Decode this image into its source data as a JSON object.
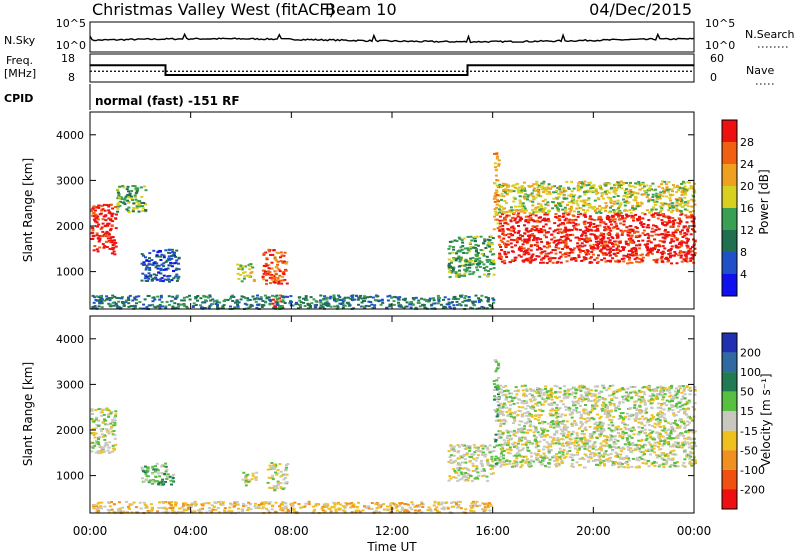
{
  "header": {
    "title": "Christmas Valley West (fitACF)",
    "beam": "Beam 10",
    "date": "04/Dec/2015"
  },
  "noise_panel": {
    "left_label": "N.Sky",
    "right_label": "N.Search",
    "left_ticks": [
      "10^5",
      "10^0"
    ],
    "right_ticks": [
      "10^5",
      "10^0"
    ]
  },
  "freq_panel": {
    "left_label_1": "Freq.",
    "left_label_2": "[MHz]",
    "right_label": "Nave",
    "left_ticks": [
      "18",
      "8"
    ],
    "right_ticks": [
      "60",
      "0"
    ]
  },
  "cpid": {
    "label": "CPID",
    "value": "normal (fast) -151 RF"
  },
  "time_axis": {
    "xlabel": "Time UT",
    "ticks": [
      "00:00",
      "04:00",
      "08:00",
      "12:00",
      "16:00",
      "20:00",
      "00:00"
    ]
  },
  "power_panel": {
    "ylabel": "Slant Range [km]",
    "yticks": [
      "1000",
      "2000",
      "3000",
      "4000"
    ],
    "colorbar_label": "Power [dB]",
    "colorbar_ticks": [
      "4",
      "8",
      "12",
      "16",
      "20",
      "24",
      "28"
    ],
    "colors": [
      "#1010ee",
      "#2050c8",
      "#207050",
      "#38a050",
      "#d8d020",
      "#f0a020",
      "#f06010",
      "#ee1010"
    ]
  },
  "velocity_panel": {
    "ylabel": "Slant Range [km]",
    "yticks": [
      "1000",
      "2000",
      "3000",
      "4000"
    ],
    "colorbar_label": "Velocity [m s⁻¹]",
    "colorbar_ticks": [
      "200",
      "100",
      "50",
      "15",
      "-15",
      "-50",
      "-100",
      "-200"
    ],
    "colors": [
      "#2030b0",
      "#2f6aa0",
      "#227a55",
      "#58c040",
      "#c8c8c0",
      "#f0c020",
      "#f09020",
      "#f05010",
      "#ee1010"
    ]
  },
  "chart_data": {
    "type": "heatmap",
    "x_range_hours": [
      0,
      24
    ],
    "y_range_km": [
      180,
      4500
    ],
    "freq_mhz": {
      "segments": [
        {
          "start_h": 0,
          "end_h": 3,
          "value": 14
        },
        {
          "start_h": 3,
          "end_h": 15,
          "value": 10.5
        },
        {
          "start_h": 15,
          "end_h": 24,
          "value": 14
        }
      ]
    },
    "nave_level": 23,
    "power_regions": [
      {
        "t0": 0.0,
        "t1": 1.0,
        "r0": 1400,
        "r1": 2500,
        "level": 7
      },
      {
        "t0": 1.0,
        "t1": 2.2,
        "r0": 2300,
        "r1": 2900,
        "level": 3
      },
      {
        "t0": 2.0,
        "t1": 3.5,
        "r0": 800,
        "r1": 1500,
        "level": 1
      },
      {
        "t0": 5.8,
        "t1": 6.5,
        "r0": 800,
        "r1": 1200,
        "level": 4
      },
      {
        "t0": 6.8,
        "t1": 7.8,
        "r0": 750,
        "r1": 1500,
        "level": 6
      },
      {
        "t0": 7.2,
        "t1": 7.6,
        "r0": 200,
        "r1": 500,
        "level": 7
      },
      {
        "t0": 0.0,
        "t1": 16.0,
        "r0": 200,
        "r1": 500,
        "level": 2
      },
      {
        "t0": 14.2,
        "t1": 16.0,
        "r0": 900,
        "r1": 1800,
        "level": 3
      },
      {
        "t0": 16.0,
        "t1": 16.2,
        "r0": 1800,
        "r1": 3700,
        "level": 5
      },
      {
        "t0": 16.2,
        "t1": 24.0,
        "r0": 1200,
        "r1": 2300,
        "level": 7
      },
      {
        "t0": 16.2,
        "t1": 24.0,
        "r0": 2300,
        "r1": 3000,
        "level": 4
      }
    ],
    "velocity_regions": [
      {
        "t0": 0.0,
        "t1": 1.0,
        "r0": 1500,
        "r1": 2500,
        "level": 4
      },
      {
        "t0": 2.0,
        "t1": 3.3,
        "r0": 800,
        "r1": 1300,
        "level": 3
      },
      {
        "t0": 6.0,
        "t1": 6.6,
        "r0": 800,
        "r1": 1100,
        "level": 4
      },
      {
        "t0": 7.0,
        "t1": 7.8,
        "r0": 700,
        "r1": 1300,
        "level": 4
      },
      {
        "t0": 0.0,
        "t1": 16.0,
        "r0": 200,
        "r1": 450,
        "level": 5
      },
      {
        "t0": 14.2,
        "t1": 16.0,
        "r0": 900,
        "r1": 1700,
        "level": 4
      },
      {
        "t0": 16.0,
        "t1": 16.2,
        "r0": 1200,
        "r1": 3600,
        "level": 3
      },
      {
        "t0": 16.2,
        "t1": 24.0,
        "r0": 1200,
        "r1": 2400,
        "level": 4
      },
      {
        "t0": 16.2,
        "t1": 24.0,
        "r0": 2400,
        "r1": 3000,
        "level": 4
      }
    ]
  }
}
